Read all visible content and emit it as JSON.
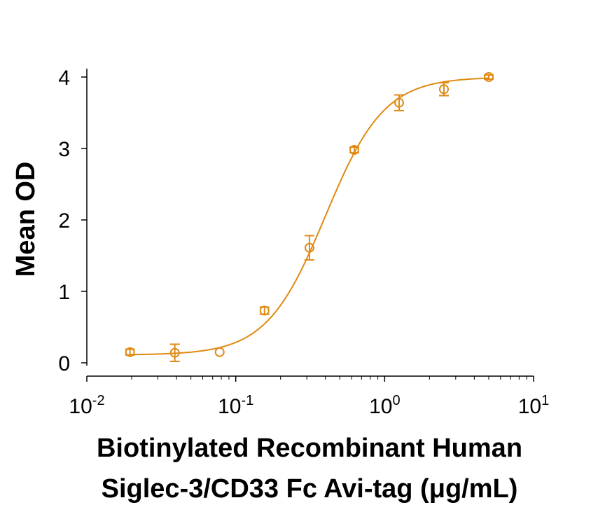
{
  "chart_data": {
    "type": "scatter",
    "title": "",
    "xlabel_line1": "Biotinylated Recombinant Human",
    "xlabel_line2": "Siglec-3/CD33 Fc Avi-tag (μg/mL)",
    "ylabel": "Mean OD",
    "x_scale": "log",
    "xlim": [
      0.01,
      10
    ],
    "ylim": [
      0,
      4
    ],
    "x_ticks": [
      {
        "base": "10",
        "exp": "-2",
        "value": 0.01
      },
      {
        "base": "10",
        "exp": "-1",
        "value": 0.1
      },
      {
        "base": "10",
        "exp": "0",
        "value": 1
      },
      {
        "base": "10",
        "exp": "1",
        "value": 10
      }
    ],
    "y_ticks": [
      "0",
      "1",
      "2",
      "3",
      "4"
    ],
    "grid": false,
    "color": "#E08A12",
    "series": [
      {
        "x": [
          0.0195,
          0.039,
          0.078,
          0.156,
          0.3125,
          0.625,
          1.25,
          2.5,
          5.0
        ],
        "y": [
          0.15,
          0.14,
          0.15,
          0.73,
          1.61,
          2.98,
          3.64,
          3.83,
          4.0
        ],
        "error": [
          0.04,
          0.12,
          0.0,
          0.05,
          0.17,
          0.04,
          0.11,
          0.09,
          0.03
        ],
        "fit": "4PL"
      }
    ]
  }
}
